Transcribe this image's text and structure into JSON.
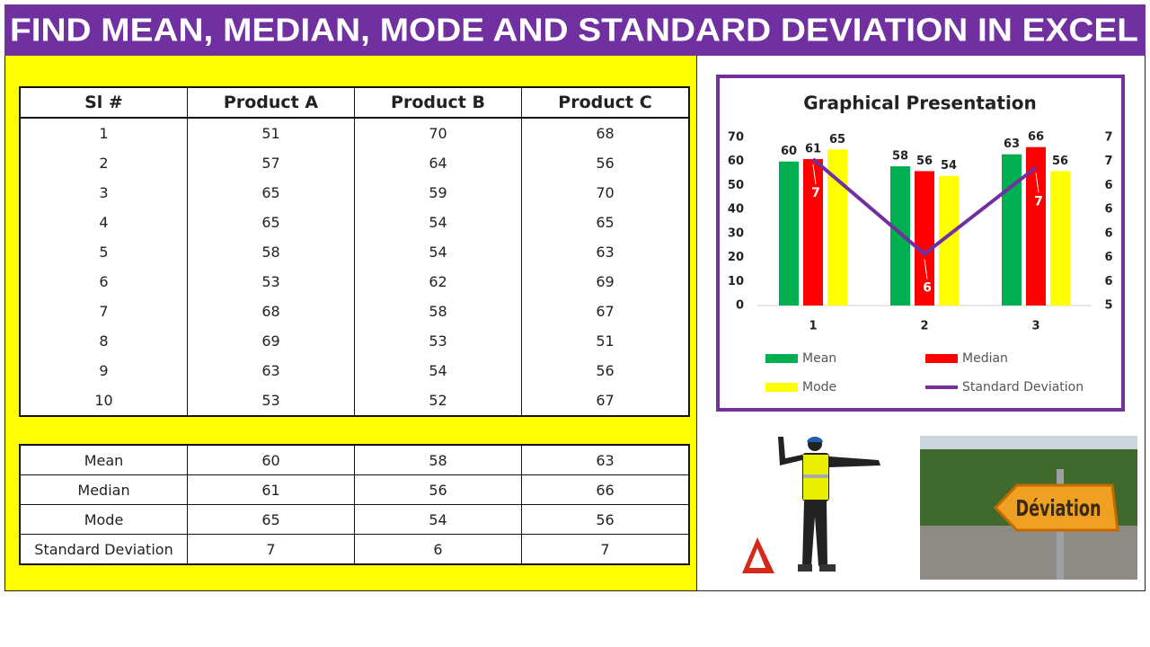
{
  "header": {
    "title": "FIND MEAN, MEDIAN, MODE AND STANDARD DEVIATION IN EXCEL"
  },
  "table": {
    "columns": [
      "Sl #",
      "Product A",
      "Product B",
      "Product C"
    ],
    "rows": [
      [
        1,
        51,
        70,
        68
      ],
      [
        2,
        57,
        64,
        56
      ],
      [
        3,
        65,
        59,
        70
      ],
      [
        4,
        65,
        54,
        65
      ],
      [
        5,
        58,
        54,
        63
      ],
      [
        6,
        53,
        62,
        69
      ],
      [
        7,
        68,
        58,
        67
      ],
      [
        8,
        69,
        53,
        51
      ],
      [
        9,
        63,
        54,
        56
      ],
      [
        10,
        53,
        52,
        67
      ]
    ]
  },
  "summary": {
    "rows": [
      [
        "Mean",
        60,
        58,
        63
      ],
      [
        "Median",
        61,
        56,
        66
      ],
      [
        "Mode",
        65,
        54,
        56
      ],
      [
        "Standard Deviation",
        7,
        6,
        7
      ]
    ]
  },
  "chart_data": {
    "type": "bar",
    "title": "Graphical Presentation",
    "categories": [
      "1",
      "2",
      "3"
    ],
    "series": [
      {
        "name": "Mean",
        "color": "#00b050",
        "values": [
          60,
          58,
          63
        ]
      },
      {
        "name": "Median",
        "color": "#ff0000",
        "values": [
          61,
          56,
          66
        ]
      },
      {
        "name": "Mode",
        "color": "#ffff00",
        "values": [
          65,
          54,
          56
        ]
      },
      {
        "name": "Standard Deviation",
        "color": "#7030a0",
        "type": "line",
        "axis": "y2",
        "values": [
          6.62,
          5.83,
          6.55
        ],
        "value_labels": [
          "7",
          "6",
          "7"
        ]
      }
    ],
    "ylim": [
      0,
      70
    ],
    "yticks": [
      0,
      10,
      20,
      30,
      40,
      50,
      60,
      70
    ],
    "y2lim": [
      5.4,
      6.8
    ],
    "y2ticks": [
      {
        "value": 5.4,
        "label": "5"
      },
      {
        "value": 5.6,
        "label": "6"
      },
      {
        "value": 5.8,
        "label": "6"
      },
      {
        "value": 6.0,
        "label": "6"
      },
      {
        "value": 6.2,
        "label": "6"
      },
      {
        "value": 6.4,
        "label": "6"
      },
      {
        "value": 6.6,
        "label": "7"
      },
      {
        "value": 6.8,
        "label": "7"
      }
    ],
    "grid": false,
    "legend": "bottom"
  },
  "photo": {
    "sign": "Déviation"
  }
}
